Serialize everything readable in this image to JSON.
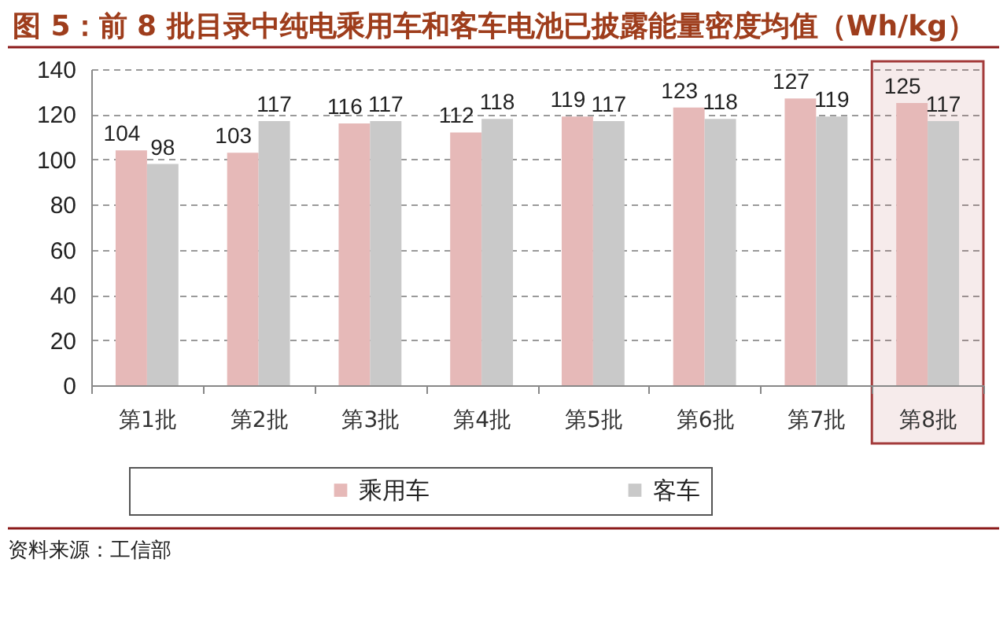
{
  "chart_data": {
    "type": "bar",
    "title": "图 5：前 8 批目录中纯电乘用车和客车电池已披露能量密度均值（Wh/kg）",
    "categories": [
      "第1批",
      "第2批",
      "第3批",
      "第4批",
      "第5批",
      "第6批",
      "第7批",
      "第8批"
    ],
    "series": [
      {
        "name": "乘用车",
        "color": "#e6b9b8",
        "values": [
          104,
          103,
          116,
          112,
          119,
          123,
          127,
          125
        ]
      },
      {
        "name": "客车",
        "color": "#c9c9c9",
        "values": [
          98,
          117,
          117,
          118,
          117,
          118,
          119,
          117
        ]
      }
    ],
    "ylim": [
      0,
      140
    ],
    "yticks": [
      0,
      20,
      40,
      60,
      80,
      100,
      120,
      140
    ],
    "grid": "y",
    "legend": "bottom",
    "data_labels": true,
    "bands": [
      {
        "axis": "x",
        "from": "第8批",
        "to": "第8批",
        "color": "#a33b3b"
      }
    ],
    "annotations": [
      "资料来源：工信部"
    ]
  }
}
